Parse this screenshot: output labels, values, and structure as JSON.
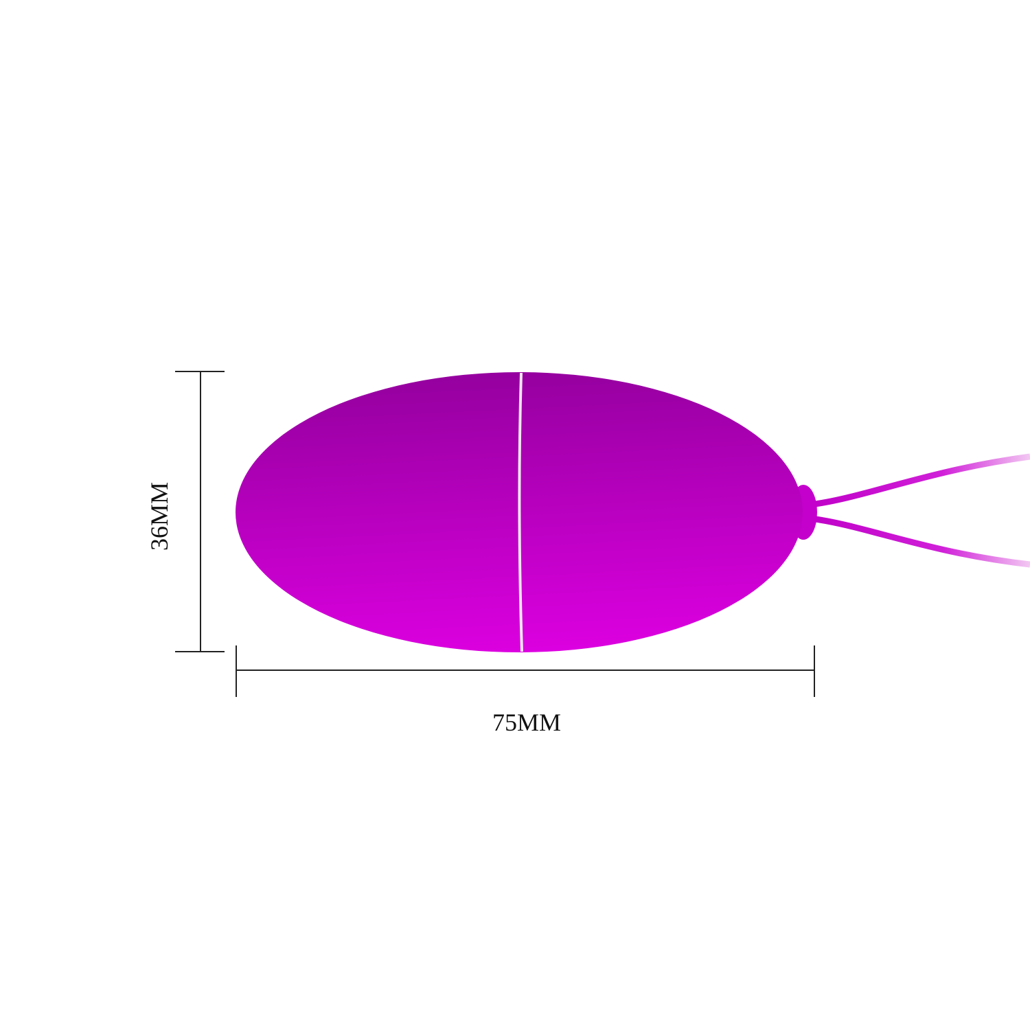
{
  "dimensions": {
    "height_label": "36MM",
    "width_label": "75MM"
  },
  "product": {
    "colors": {
      "body_top": "#95009f",
      "body_bottom": "#dc00e0",
      "seam": "#f2e6f2",
      "dimension_line": "#222222"
    }
  }
}
